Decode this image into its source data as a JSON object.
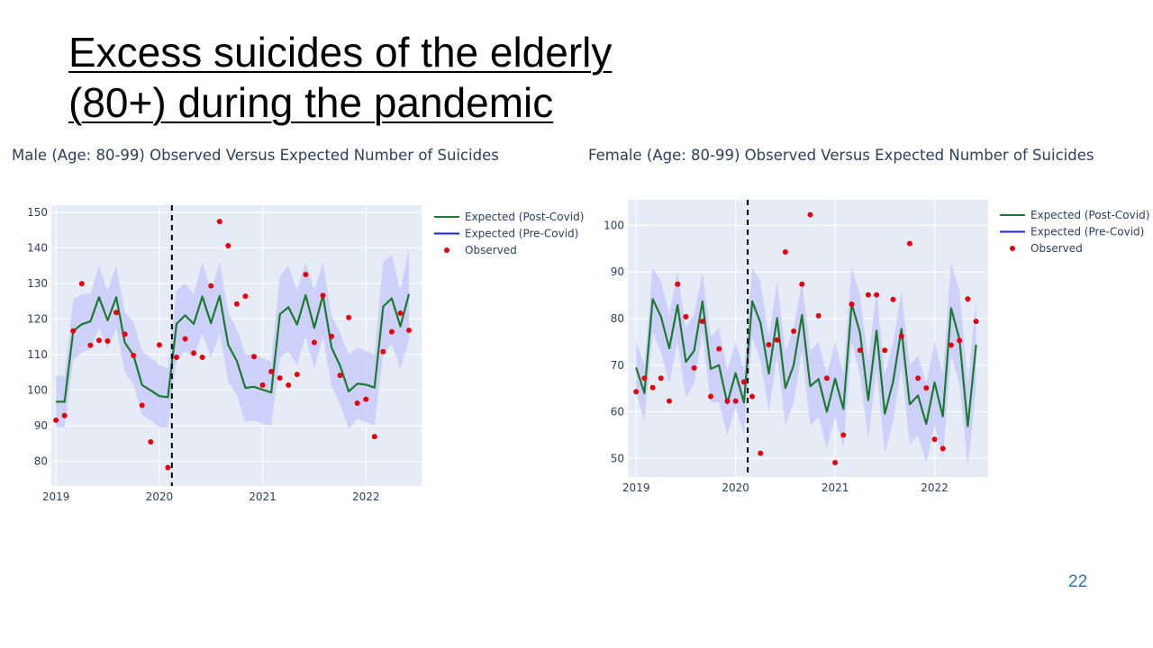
{
  "slide": {
    "title": "Excess suicides of the elderly (80+) during the pandemic",
    "page_number": "22"
  },
  "chart_data": [
    {
      "type": "line",
      "title": "Male (Age: 80-99) Observed Versus Expected Number of Suicides",
      "xlabel": "",
      "ylabel": "",
      "x_ticks": [
        "2019",
        "2020",
        "2021",
        "2022"
      ],
      "y_ticks": [
        80,
        90,
        100,
        110,
        120,
        130,
        140,
        150
      ],
      "ylim": [
        73,
        152
      ],
      "xlim": [
        "2018-12-15",
        "2022-07-15"
      ],
      "grid": true,
      "legend_position": "top-right",
      "changepoint": "2020-02-15",
      "colors": {
        "expected_post": "#1b7a2e",
        "expected_pre": "#1f1fd9",
        "observed": "#e8000b",
        "band": "#c9ccfa",
        "plot_bg": "#e5ecf6"
      },
      "series": [
        {
          "name": "Expected (Post-Covid)",
          "kind": "line",
          "x": [
            "2019-01",
            "2019-02",
            "2019-03",
            "2019-04",
            "2019-05",
            "2019-06",
            "2019-07",
            "2019-08",
            "2019-09",
            "2019-10",
            "2019-11",
            "2019-12",
            "2020-01",
            "2020-02",
            "2020-03",
            "2020-04",
            "2020-05",
            "2020-06",
            "2020-07",
            "2020-08",
            "2020-09",
            "2020-10",
            "2020-11",
            "2020-12",
            "2021-01",
            "2021-02",
            "2021-03",
            "2021-04",
            "2021-05",
            "2021-06",
            "2021-07",
            "2021-08",
            "2021-09",
            "2021-10",
            "2021-11",
            "2021-12",
            "2022-01",
            "2022-02",
            "2022-03",
            "2022-04",
            "2022-05",
            "2022-06"
          ],
          "y": [
            96.7,
            96.7,
            116.6,
            118.5,
            119.3,
            126.1,
            119.6,
            126.1,
            113.3,
            109.8,
            101.4,
            99.9,
            98.3,
            98.0,
            118.6,
            121.0,
            118.6,
            126.3,
            118.8,
            126.5,
            112.7,
            108.2,
            100.6,
            100.9,
            100.1,
            99.3,
            121.3,
            123.3,
            118.4,
            126.7,
            117.5,
            126.7,
            112.0,
            106.8,
            99.6,
            101.8,
            101.5,
            100.7,
            123.5,
            125.8,
            117.9,
            127.0
          ]
        },
        {
          "name": "Expected (Pre-Covid)",
          "kind": "line",
          "x": [],
          "y": []
        },
        {
          "name": "Observed",
          "kind": "scatter",
          "x": [
            "2019-01",
            "2019-02",
            "2019-03",
            "2019-04",
            "2019-05",
            "2019-06",
            "2019-07",
            "2019-08",
            "2019-09",
            "2019-10",
            "2019-11",
            "2019-12",
            "2020-01",
            "2020-02",
            "2020-03",
            "2020-04",
            "2020-05",
            "2020-06",
            "2020-07",
            "2020-08",
            "2020-09",
            "2020-10",
            "2020-11",
            "2020-12",
            "2021-01",
            "2021-02",
            "2021-03",
            "2021-04",
            "2021-05",
            "2021-06",
            "2021-07",
            "2021-08",
            "2021-09",
            "2021-10",
            "2021-11",
            "2021-12",
            "2022-01",
            "2022-02",
            "2022-03",
            "2022-04",
            "2022-05",
            "2022-06"
          ],
          "y": [
            91.5,
            92.8,
            116.6,
            129.9,
            112.6,
            114.0,
            113.8,
            121.8,
            115.7,
            109.7,
            95.7,
            85.4,
            112.7,
            78.2,
            109.2,
            114.4,
            110.4,
            109.2,
            129.3,
            147.4,
            140.6,
            124.2,
            126.4,
            109.4,
            101.4,
            105.2,
            103.4,
            101.4,
            104.4,
            132.5,
            113.4,
            126.6,
            115.1,
            104.1,
            120.4,
            96.3,
            97.4,
            86.9,
            110.8,
            116.4,
            121.6,
            116.8
          ]
        }
      ],
      "band": {
        "x": [
          "2019-01",
          "2019-02",
          "2019-03",
          "2019-04",
          "2019-05",
          "2019-06",
          "2019-07",
          "2019-08",
          "2019-09",
          "2019-10",
          "2019-11",
          "2019-12",
          "2020-01",
          "2020-02",
          "2020-03",
          "2020-04",
          "2020-05",
          "2020-06",
          "2020-07",
          "2020-08",
          "2020-09",
          "2020-10",
          "2020-11",
          "2020-12",
          "2021-01",
          "2021-02",
          "2021-03",
          "2021-04",
          "2021-05",
          "2021-06",
          "2021-07",
          "2021-08",
          "2021-09",
          "2021-10",
          "2021-11",
          "2021-12",
          "2022-01",
          "2022-02",
          "2022-03",
          "2022-04",
          "2022-05",
          "2022-06"
        ],
        "upper": [
          104,
          104,
          125.5,
          127,
          127,
          135,
          128,
          135,
          122,
          119,
          111,
          109,
          107,
          106,
          128,
          130,
          127,
          136,
          128,
          136,
          122,
          117,
          110,
          110,
          109,
          108,
          132,
          135,
          128,
          136,
          128,
          136,
          121,
          116,
          110,
          112,
          111,
          110,
          136,
          138,
          128,
          140
        ],
        "lower": [
          89.5,
          89.5,
          108.5,
          110.5,
          111.5,
          117.5,
          111.5,
          117.5,
          105,
          101.5,
          93,
          91.5,
          89.5,
          89.5,
          108,
          111,
          109,
          116,
          109,
          116,
          102.5,
          98.5,
          91,
          91.5,
          90.5,
          90,
          109,
          111,
          107,
          115,
          106,
          115,
          101,
          96,
          89,
          92,
          91,
          90,
          110,
          113,
          106,
          114
        ]
      }
    },
    {
      "type": "line",
      "title": "Female (Age: 80-99) Observed Versus Expected Number of Suicides",
      "xlabel": "",
      "ylabel": "",
      "x_ticks": [
        "2019",
        "2020",
        "2021",
        "2022"
      ],
      "y_ticks": [
        50,
        60,
        70,
        80,
        90,
        100
      ],
      "ylim": [
        46,
        105.5
      ],
      "xlim": [
        "2018-12-01",
        "2022-07-15"
      ],
      "grid": true,
      "legend_position": "top-right",
      "changepoint": "2020-02-15",
      "colors": {
        "expected_post": "#1b7a2e",
        "expected_pre": "#1f1fd9",
        "observed": "#e8000b",
        "band": "#c9ccfa",
        "plot_bg": "#e5ecf6"
      },
      "series": [
        {
          "name": "Expected (Post-Covid)",
          "kind": "line",
          "x": [
            "2019-01",
            "2019-02",
            "2019-03",
            "2019-04",
            "2019-05",
            "2019-06",
            "2019-07",
            "2019-08",
            "2019-09",
            "2019-10",
            "2019-11",
            "2019-12",
            "2020-01",
            "2020-02",
            "2020-03",
            "2020-04",
            "2020-05",
            "2020-06",
            "2020-07",
            "2020-08",
            "2020-09",
            "2020-10",
            "2020-11",
            "2020-12",
            "2021-01",
            "2021-02",
            "2021-03",
            "2021-04",
            "2021-05",
            "2021-06",
            "2021-07",
            "2021-08",
            "2021-09",
            "2021-10",
            "2021-11",
            "2021-12",
            "2022-01",
            "2022-02",
            "2022-03",
            "2022-04",
            "2022-05",
            "2022-06"
          ],
          "y": [
            69.5,
            64.0,
            84.2,
            80.4,
            73.6,
            82.9,
            70.7,
            73.1,
            83.7,
            69.2,
            70.0,
            61.8,
            68.3,
            62.0,
            83.7,
            79.1,
            68.2,
            80.1,
            65.1,
            70.0,
            80.8,
            65.5,
            67.0,
            60.0,
            67.1,
            60.6,
            83.2,
            77.0,
            62.5,
            77.4,
            59.6,
            66.5,
            77.8,
            61.6,
            63.5,
            57.4,
            66.3,
            59.0,
            82.2,
            75.5,
            56.9,
            74.4
          ]
        },
        {
          "name": "Expected (Pre-Covid)",
          "kind": "line",
          "x": [],
          "y": []
        },
        {
          "name": "Observed",
          "kind": "scatter",
          "x": [
            "2019-01",
            "2019-02",
            "2019-03",
            "2019-04",
            "2019-05",
            "2019-06",
            "2019-07",
            "2019-08",
            "2019-09",
            "2019-10",
            "2019-11",
            "2019-12",
            "2020-01",
            "2020-02",
            "2020-03",
            "2020-04",
            "2020-05",
            "2020-06",
            "2020-07",
            "2020-08",
            "2020-09",
            "2020-10",
            "2020-11",
            "2020-12",
            "2021-01",
            "2021-02",
            "2021-03",
            "2021-04",
            "2021-05",
            "2021-06",
            "2021-07",
            "2021-08",
            "2021-09",
            "2021-10",
            "2021-11",
            "2021-12",
            "2022-01",
            "2022-02",
            "2022-03",
            "2022-04",
            "2022-05",
            "2022-06"
          ],
          "y": [
            64.3,
            67.2,
            65.2,
            67.2,
            62.3,
            87.4,
            80.4,
            69.4,
            79.4,
            63.3,
            73.5,
            62.3,
            62.3,
            66.4,
            63.3,
            51.1,
            74.4,
            75.4,
            94.3,
            77.3,
            87.4,
            102.3,
            80.6,
            67.2,
            49.1,
            55.0,
            83.1,
            73.2,
            85.1,
            85.1,
            73.2,
            84.1,
            76.2,
            96.1,
            67.2,
            65.1,
            54.1,
            52.1,
            74.3,
            75.3,
            84.2,
            79.4
          ]
        }
      ],
      "band": {
        "x": [
          "2019-01",
          "2019-02",
          "2019-03",
          "2019-04",
          "2019-05",
          "2019-06",
          "2019-07",
          "2019-08",
          "2019-09",
          "2019-10",
          "2019-11",
          "2019-12",
          "2020-01",
          "2020-02",
          "2020-03",
          "2020-04",
          "2020-05",
          "2020-06",
          "2020-07",
          "2020-08",
          "2020-09",
          "2020-10",
          "2020-11",
          "2020-12",
          "2021-01",
          "2021-02",
          "2021-03",
          "2021-04",
          "2021-05",
          "2021-06",
          "2021-07",
          "2021-08",
          "2021-09",
          "2021-10",
          "2021-11",
          "2021-12",
          "2022-01",
          "2022-02",
          "2022-03",
          "2022-04",
          "2022-05",
          "2022-06"
        ],
        "upper": [
          75,
          70,
          91,
          88,
          81,
          90,
          78,
          81,
          90,
          76,
          78,
          69,
          75,
          69,
          91,
          88,
          76,
          88,
          73,
          78,
          88,
          73,
          75,
          68,
          75,
          68,
          91,
          85,
          71,
          86,
          68,
          75,
          86,
          70,
          72,
          66,
          75,
          68,
          92,
          86,
          66,
          84
        ],
        "lower": [
          64,
          58,
          77,
          73,
          66,
          75,
          63,
          66,
          77,
          62,
          62,
          55,
          61,
          55,
          76,
          71,
          60,
          72,
          57,
          62,
          73,
          57,
          59,
          52,
          59,
          52,
          75,
          68,
          54,
          69,
          51,
          58,
          70,
          53,
          55,
          49,
          57,
          50,
          72,
          66,
          48,
          65
        ]
      }
    }
  ]
}
